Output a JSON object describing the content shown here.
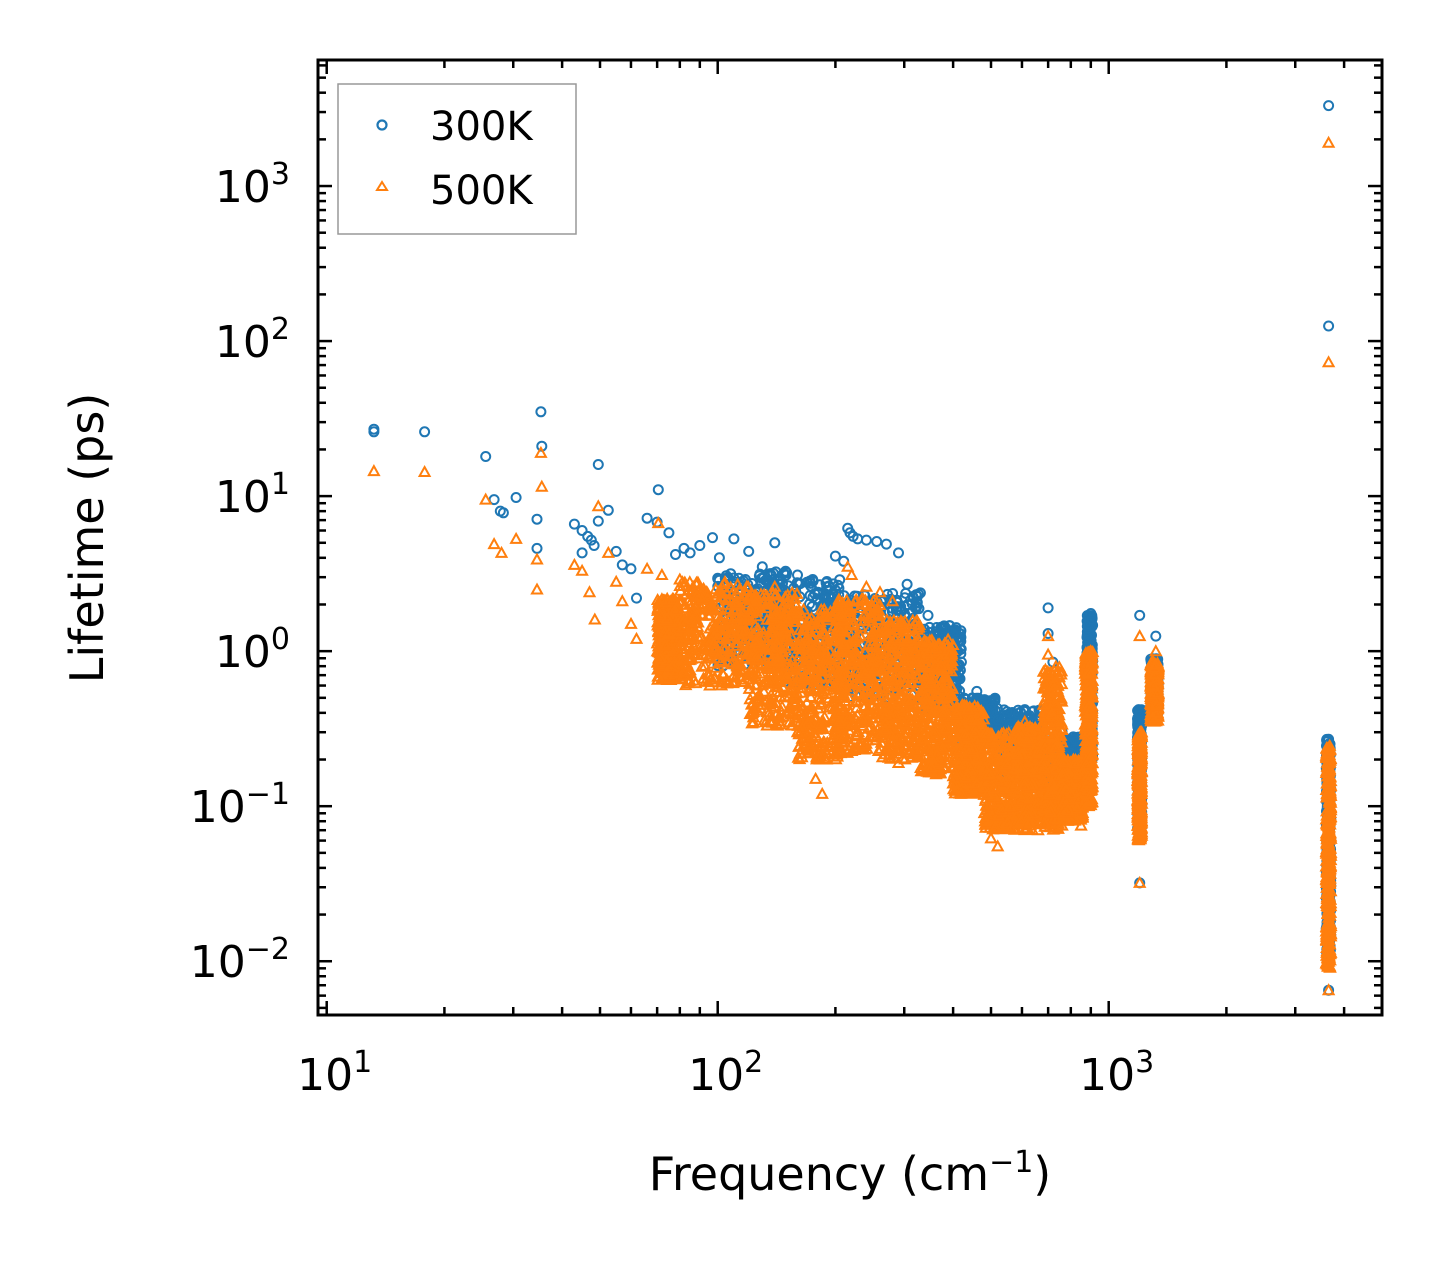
{
  "chart_data": {
    "type": "scatter",
    "title": "",
    "xlabel": "Frequency (cm",
    "xlabel_sup": "−1",
    "xlabel_end": ")",
    "ylabel": "Lifetime (ps)",
    "xscale": "log",
    "yscale": "log",
    "xlim": [
      9.5,
      5000
    ],
    "ylim": [
      0.0045,
      6500
    ],
    "x_ticks": [
      {
        "base": "10",
        "exp": "1",
        "value": 10
      },
      {
        "base": "10",
        "exp": "2",
        "value": 100
      },
      {
        "base": "10",
        "exp": "3",
        "value": 1000
      }
    ],
    "y_ticks": [
      {
        "base": "10",
        "exp": "−2",
        "value": 0.01
      },
      {
        "base": "10",
        "exp": "−1",
        "value": 0.1
      },
      {
        "base": "10",
        "exp": "0",
        "value": 1
      },
      {
        "base": "10",
        "exp": "1",
        "value": 10
      },
      {
        "base": "10",
        "exp": "2",
        "value": 100
      },
      {
        "base": "10",
        "exp": "3",
        "value": 1000
      }
    ],
    "legend_position": "top-left",
    "series": [
      {
        "name": "300K",
        "marker": "circle",
        "color": "#1f77b4",
        "points": [
          [
            13.2,
            27
          ],
          [
            13.2,
            26
          ],
          [
            17.8,
            26
          ],
          [
            25.5,
            18
          ],
          [
            26.8,
            9.5
          ],
          [
            27.8,
            8
          ],
          [
            28.3,
            7.8
          ],
          [
            30.5,
            9.8
          ],
          [
            34.5,
            7.1
          ],
          [
            34.5,
            4.6
          ],
          [
            35.3,
            35
          ],
          [
            35.5,
            21
          ],
          [
            43,
            6.6
          ],
          [
            45,
            6
          ],
          [
            46.5,
            5.5
          ],
          [
            47.5,
            5.2
          ],
          [
            48.3,
            4.8
          ],
          [
            49.5,
            16
          ],
          [
            49.5,
            6.9
          ],
          [
            52.5,
            8.1
          ],
          [
            45,
            4.3
          ],
          [
            55,
            4.4
          ],
          [
            57,
            3.6
          ],
          [
            60,
            3.4
          ],
          [
            62,
            2.2
          ],
          [
            66,
            7.2
          ],
          [
            70,
            6.8
          ],
          [
            70.5,
            11
          ],
          [
            75,
            5.8
          ],
          [
            78,
            4.2
          ],
          [
            82,
            4.6
          ],
          [
            85,
            4.3
          ],
          [
            90,
            4.8
          ],
          [
            97,
            5.4
          ],
          [
            101,
            4
          ],
          [
            110,
            5.3
          ],
          [
            120,
            4.4
          ],
          [
            130,
            3.5
          ],
          [
            140,
            5
          ],
          [
            150,
            3.2
          ],
          [
            160,
            3.1
          ],
          [
            175,
            2.9
          ],
          [
            190,
            2.6
          ],
          [
            200,
            4.1
          ],
          [
            210,
            3.8
          ],
          [
            215,
            6.2
          ],
          [
            218,
            5.8
          ],
          [
            222,
            5.5
          ],
          [
            228,
            5.3
          ],
          [
            240,
            5.2
          ],
          [
            255,
            5.1
          ],
          [
            270,
            4.9
          ],
          [
            290,
            4.3
          ],
          [
            305,
            2.7
          ],
          [
            320,
            1.9
          ],
          [
            345,
            1.7
          ],
          [
            380,
            1.4
          ],
          [
            420,
            0.85
          ],
          [
            460,
            0.55
          ],
          [
            500,
            0.45
          ],
          [
            560,
            0.34
          ],
          [
            610,
            0.42
          ],
          [
            660,
            0.3
          ],
          [
            700,
            1.9
          ],
          [
            700,
            1.3
          ],
          [
            720,
            0.85
          ],
          [
            760,
            0.3
          ],
          [
            800,
            0.22
          ],
          [
            850,
            0.2
          ],
          [
            880,
            0.95
          ],
          [
            890,
            1.5
          ],
          [
            900,
            1.75
          ],
          [
            905,
            1.6
          ],
          [
            1200,
            1.7
          ],
          [
            1200,
            0.032
          ],
          [
            1205,
            0.4
          ],
          [
            1210,
            0.15
          ],
          [
            1300,
            0.75
          ],
          [
            1320,
            1.25
          ],
          [
            3650,
            3300
          ],
          [
            3650,
            125
          ],
          [
            3650,
            0.27
          ],
          [
            3650,
            0.0065
          ]
        ]
      },
      {
        "name": "500K",
        "marker": "triangle",
        "color": "#ff7f0e",
        "points": [
          [
            13.2,
            14.5
          ],
          [
            17.8,
            14.3
          ],
          [
            25.5,
            9.5
          ],
          [
            26.8,
            4.9
          ],
          [
            28,
            4.3
          ],
          [
            30.5,
            5.3
          ],
          [
            34.5,
            3.9
          ],
          [
            34.5,
            2.5
          ],
          [
            35.3,
            19
          ],
          [
            35.5,
            11.5
          ],
          [
            43,
            3.6
          ],
          [
            45,
            3.3
          ],
          [
            47,
            2.4
          ],
          [
            48.5,
            1.6
          ],
          [
            49.5,
            8.6
          ],
          [
            52.5,
            4.3
          ],
          [
            55,
            2.8
          ],
          [
            57,
            2.1
          ],
          [
            60,
            1.5
          ],
          [
            62,
            1.2
          ],
          [
            66,
            3.4
          ],
          [
            70.5,
            6.7
          ],
          [
            72,
            3.1
          ],
          [
            75,
            1.3
          ],
          [
            80,
            2.9
          ],
          [
            85,
            1.2
          ],
          [
            90,
            0.9
          ],
          [
            100,
            0.9
          ],
          [
            110,
            0.7
          ],
          [
            125,
            0.6
          ],
          [
            130,
            0.45
          ],
          [
            140,
            2.6
          ],
          [
            150,
            0.4
          ],
          [
            160,
            0.3
          ],
          [
            170,
            0.22
          ],
          [
            178,
            0.15
          ],
          [
            185,
            0.12
          ],
          [
            190,
            0.2
          ],
          [
            205,
            0.35
          ],
          [
            215,
            3.5
          ],
          [
            220,
            3.1
          ],
          [
            240,
            2.6
          ],
          [
            260,
            2.4
          ],
          [
            280,
            2.1
          ],
          [
            290,
            0.19
          ],
          [
            300,
            1.2
          ],
          [
            320,
            1.0
          ],
          [
            350,
            0.62
          ],
          [
            380,
            0.4
          ],
          [
            400,
            0.14
          ],
          [
            420,
            0.12
          ],
          [
            460,
            0.2
          ],
          [
            500,
            0.062
          ],
          [
            520,
            0.055
          ],
          [
            560,
            0.1
          ],
          [
            610,
            0.35
          ],
          [
            660,
            0.07
          ],
          [
            700,
            1.25
          ],
          [
            700,
            0.95
          ],
          [
            720,
            0.6
          ],
          [
            760,
            0.075
          ],
          [
            800,
            0.12
          ],
          [
            850,
            0.075
          ],
          [
            880,
            0.6
          ],
          [
            900,
            1.0
          ],
          [
            905,
            0.85
          ],
          [
            1200,
            1.25
          ],
          [
            1200,
            0.032
          ],
          [
            1210,
            0.2
          ],
          [
            1300,
            0.6
          ],
          [
            1320,
            1.0
          ],
          [
            3650,
            1900
          ],
          [
            3650,
            73
          ],
          [
            3650,
            0.22
          ],
          [
            3650,
            0.0065
          ]
        ],
        "bands": [
          {
            "x": [
              70,
              80
            ],
            "y": [
              0.65,
              2.2
            ]
          },
          {
            "x": [
              80,
              120
            ],
            "y": [
              0.6,
              2.8
            ]
          },
          {
            "x": [
              120,
              160
            ],
            "y": [
              0.33,
              2.4
            ]
          },
          {
            "x": [
              160,
              210
            ],
            "y": [
              0.2,
              1.9
            ]
          },
          {
            "x": [
              200,
              260
            ],
            "y": [
              0.22,
              2.2
            ]
          },
          {
            "x": [
              260,
              330
            ],
            "y": [
              0.2,
              1.6
            ]
          },
          {
            "x": [
              330,
              400
            ],
            "y": [
              0.16,
              1.2
            ]
          },
          {
            "x": [
              400,
              480
            ],
            "y": [
              0.12,
              0.45
            ]
          },
          {
            "x": [
              480,
              580
            ],
            "y": [
              0.07,
              0.3
            ]
          },
          {
            "x": [
              580,
              680
            ],
            "y": [
              0.07,
              0.33
            ]
          },
          {
            "x": [
              680,
              760
            ],
            "y": [
              0.07,
              0.8
            ]
          },
          {
            "x": [
              760,
              860
            ],
            "y": [
              0.08,
              0.2
            ]
          },
          {
            "x": [
              870,
              910
            ],
            "y": [
              0.1,
              1.0
            ]
          },
          {
            "x": [
              1185,
              1215
            ],
            "y": [
              0.06,
              0.3
            ]
          },
          {
            "x": [
              1280,
              1340
            ],
            "y": [
              0.35,
              0.85
            ]
          },
          {
            "x": [
              3600,
              3700
            ],
            "y": [
              0.009,
              0.25
            ]
          }
        ]
      }
    ],
    "blue_bands": [
      {
        "x": [
          100,
          150
        ],
        "y": [
          0.8,
          3.3
        ]
      },
      {
        "x": [
          150,
          210
        ],
        "y": [
          0.6,
          2.9
        ]
      },
      {
        "x": [
          210,
          330
        ],
        "y": [
          0.5,
          2.4
        ]
      },
      {
        "x": [
          330,
          420
        ],
        "y": [
          0.4,
          1.5
        ]
      },
      {
        "x": [
          420,
          520
        ],
        "y": [
          0.25,
          0.5
        ]
      },
      {
        "x": [
          520,
          680
        ],
        "y": [
          0.15,
          0.42
        ]
      },
      {
        "x": [
          680,
          860
        ],
        "y": [
          0.15,
          0.28
        ]
      },
      {
        "x": [
          880,
          910
        ],
        "y": [
          0.2,
          1.7
        ]
      },
      {
        "x": [
          1185,
          1215
        ],
        "y": [
          0.07,
          0.42
        ]
      },
      {
        "x": [
          1280,
          1340
        ],
        "y": [
          0.4,
          0.9
        ]
      },
      {
        "x": [
          3600,
          3700
        ],
        "y": [
          0.01,
          0.27
        ]
      }
    ]
  }
}
